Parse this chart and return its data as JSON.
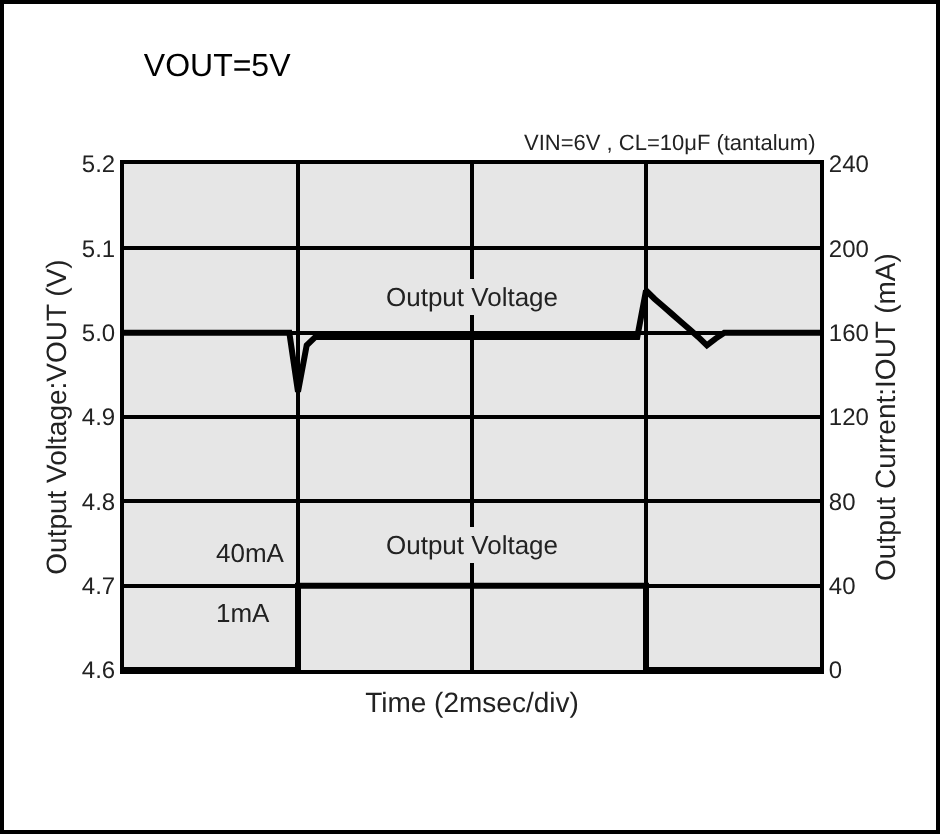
{
  "chart_data": {
    "type": "line",
    "title": "VOUT=5V",
    "subtitle": "VIN=6V , CL=10μF (tantalum)",
    "xlabel": "Time (2msec/div)",
    "ylabel": "Output Voltage:VOUT (V)",
    "y2label": "Output Current:IOUT (mA)",
    "categories": [
      null,
      null,
      null,
      null,
      null,
      null,
      null,
      null,
      null,
      null,
      null,
      null,
      null,
      null,
      null,
      null,
      null,
      null,
      null,
      null,
      null,
      null,
      null,
      null,
      null,
      null,
      null,
      null,
      null,
      null,
      null,
      null,
      null,
      null,
      null,
      null,
      null,
      null,
      null,
      null,
      null,
      null,
      null,
      null,
      null,
      null,
      null,
      null,
      null,
      null,
      null,
      null,
      null,
      null,
      null,
      null,
      null,
      null,
      null,
      null,
      null,
      null,
      null,
      null,
      null,
      null,
      null,
      null,
      null,
      null,
      null,
      null,
      null,
      null,
      null,
      null,
      null,
      null,
      null,
      null,
      null
    ],
    "ylim": [
      4.6,
      5.2
    ],
    "yticks": [
      4.6,
      4.7,
      4.8,
      4.9,
      {
        "value": 5.0,
        "label": "5.0"
      },
      5.1,
      5.2
    ],
    "y2lim": [
      0,
      240
    ],
    "y2ticks": [
      0,
      40,
      80,
      120,
      160,
      200,
      240
    ],
    "grid": true,
    "legend": false,
    "marker": "none",
    "line_style": "solid",
    "annotations": [
      "40mA",
      "1mA"
    ],
    "series": [
      {
        "name": "Output Voltage",
        "color": "#000000",
        "values": [
          5.0,
          5.0,
          5.0,
          5.0,
          5.0,
          5.0,
          5.0,
          5.0,
          5.0,
          5.0,
          5.0,
          5.0,
          5.0,
          5.0,
          5.0,
          5.0,
          5.0,
          5.0,
          5.0,
          5.0,
          4.93,
          4.985,
          4.995,
          4.995,
          4.995,
          4.995,
          4.995,
          4.995,
          4.995,
          4.995,
          4.995,
          4.995,
          4.995,
          4.995,
          4.995,
          4.995,
          4.995,
          4.995,
          4.995,
          4.995,
          4.995,
          4.995,
          4.995,
          4.995,
          4.995,
          4.995,
          4.995,
          4.995,
          4.995,
          4.995,
          4.995,
          4.995,
          4.995,
          4.995,
          4.995,
          4.995,
          4.995,
          4.995,
          4.995,
          4.995,
          5.05,
          5.04,
          5.031,
          5.022,
          5.013,
          5.004,
          4.995,
          4.985,
          4.993,
          5.0,
          5.0,
          5.0,
          5.0,
          5.0,
          5.0,
          5.0,
          5.0,
          5.0,
          5.0,
          5.0,
          5.0
        ]
      },
      {
        "name": "Output Voltage",
        "color": "#000000",
        "type": "step",
        "axis": "y2",
        "values": [
          0,
          0,
          0,
          0,
          0,
          0,
          0,
          0,
          0,
          0,
          0,
          0,
          0,
          0,
          0,
          0,
          0,
          0,
          0,
          0,
          40,
          40,
          40,
          40,
          40,
          40,
          40,
          40,
          40,
          40,
          40,
          40,
          40,
          40,
          40,
          40,
          40,
          40,
          40,
          40,
          40,
          40,
          40,
          40,
          40,
          40,
          40,
          40,
          40,
          40,
          40,
          40,
          40,
          40,
          40,
          40,
          40,
          40,
          40,
          40,
          0,
          0,
          0,
          0,
          0,
          0,
          0,
          0,
          0,
          0,
          0,
          0,
          0,
          0,
          0,
          0,
          0,
          0,
          0,
          0,
          0
        ]
      }
    ]
  }
}
